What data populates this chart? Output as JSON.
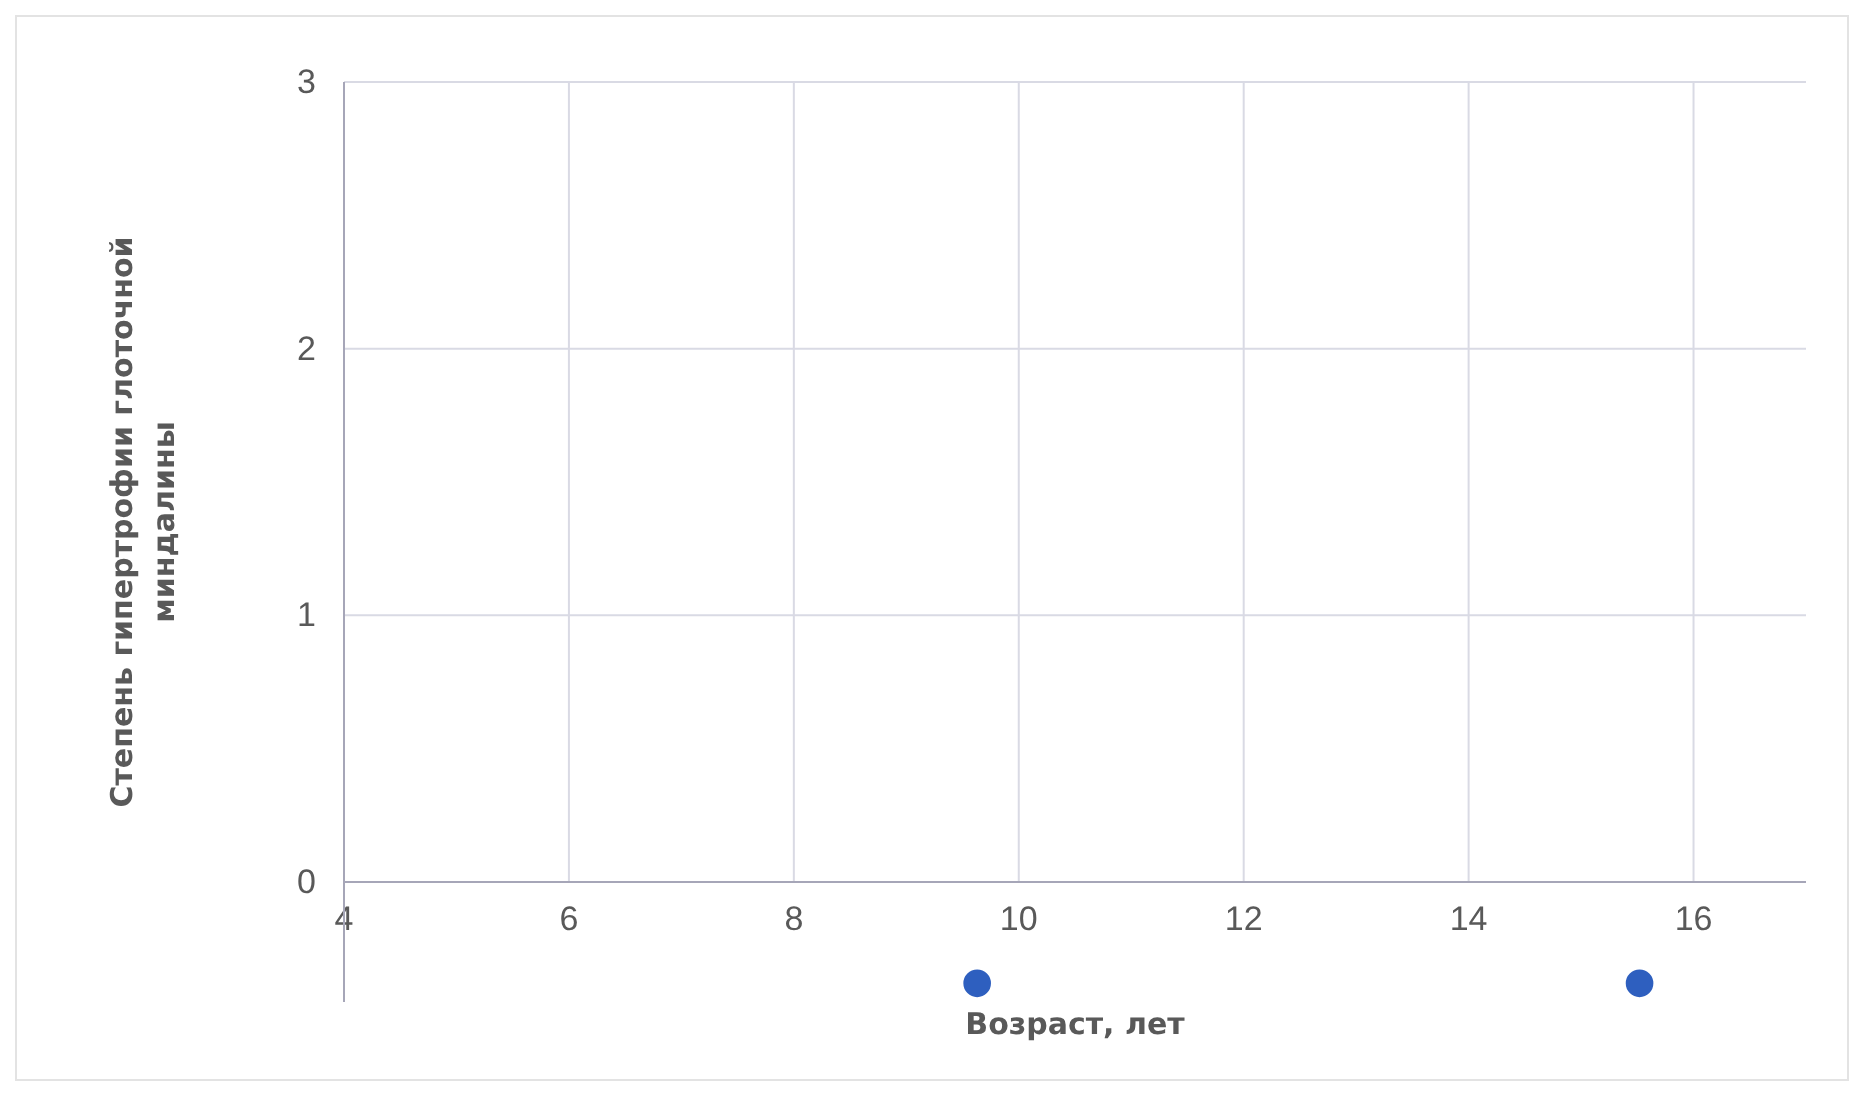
{
  "chart_data": {
    "type": "scatter",
    "xlabel": "Возраст, лет",
    "ylabel": "Степень гипертрофии глоточной миндалины",
    "x": [
      9.63,
      15.52
    ],
    "series": [
      {
        "color": "#2e5fbf",
        "values": [
          -0.38,
          -0.38
        ]
      }
    ],
    "xlim": [
      4,
      17
    ],
    "xticks": [
      4,
      6,
      8,
      10,
      12,
      14,
      16
    ],
    "ylim": [
      -0.45,
      3
    ],
    "yticks": [
      0,
      1,
      2,
      3
    ],
    "grid": true,
    "marker": "circle"
  }
}
